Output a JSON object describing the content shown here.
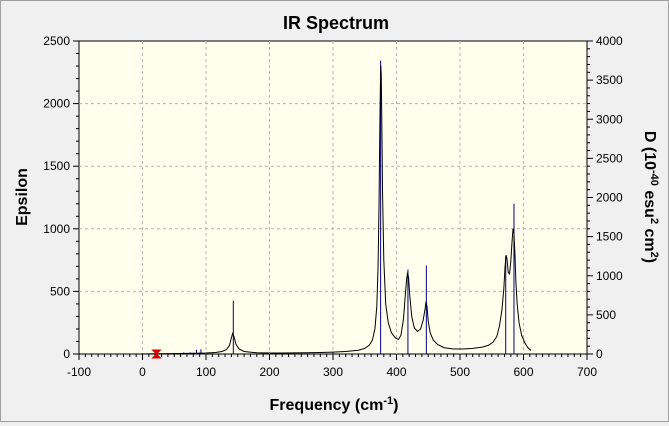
{
  "chart_data": {
    "type": "line",
    "title": "IR Spectrum",
    "xlabel_main": "Frequency (cm",
    "xlabel_sup": "-1",
    "xlabel_end": ")",
    "ylabel_left": "Epsilon",
    "ylabel_right_parts": [
      "D (10",
      "-40",
      " esu",
      "2",
      " cm",
      "2",
      ")"
    ],
    "xlim": [
      -100,
      700
    ],
    "ylim_left": [
      0,
      2500
    ],
    "ylim_right": [
      0,
      4000
    ],
    "x_ticks": [
      -100,
      0,
      100,
      200,
      300,
      400,
      500,
      600,
      700
    ],
    "y_left_ticks": [
      0,
      500,
      1000,
      1500,
      2000,
      2500
    ],
    "y_right_ticks": [
      0,
      500,
      1000,
      1500,
      2000,
      2500,
      3000,
      3500,
      4000
    ],
    "grid": true,
    "colors": {
      "plot_bg": "#ffffee",
      "spectrum_line": "#000000",
      "stick_lines": "#000080",
      "marker": "#dd0000",
      "grid": "#b4b4b4"
    },
    "series": [
      {
        "kind": "spectrum",
        "points": [
          [
            -5,
            0
          ],
          [
            20,
            2
          ],
          [
            40,
            3
          ],
          [
            60,
            4
          ],
          [
            80,
            6
          ],
          [
            100,
            8
          ],
          [
            115,
            12
          ],
          [
            125,
            20
          ],
          [
            132,
            35
          ],
          [
            137,
            70
          ],
          [
            140,
            130
          ],
          [
            142,
            165
          ],
          [
            144,
            140
          ],
          [
            147,
            80
          ],
          [
            152,
            40
          ],
          [
            160,
            20
          ],
          [
            180,
            10
          ],
          [
            200,
            8
          ],
          [
            220,
            8
          ],
          [
            240,
            9
          ],
          [
            260,
            10
          ],
          [
            280,
            12
          ],
          [
            300,
            15
          ],
          [
            320,
            20
          ],
          [
            340,
            30
          ],
          [
            350,
            45
          ],
          [
            357,
            70
          ],
          [
            362,
            110
          ],
          [
            366,
            200
          ],
          [
            369,
            380
          ],
          [
            371,
            700
          ],
          [
            372.5,
            1200
          ],
          [
            373.5,
            1700
          ],
          [
            374.5,
            2100
          ],
          [
            375.3,
            2300
          ],
          [
            376,
            2230
          ],
          [
            377,
            1800
          ],
          [
            378,
            1300
          ],
          [
            380,
            750
          ],
          [
            383,
            400
          ],
          [
            387,
            250
          ],
          [
            392,
            170
          ],
          [
            398,
            130
          ],
          [
            403,
            115
          ],
          [
            407,
            150
          ],
          [
            411,
            280
          ],
          [
            414,
            480
          ],
          [
            416,
            600
          ],
          [
            417.5,
            650
          ],
          [
            419,
            610
          ],
          [
            421,
            460
          ],
          [
            424,
            300
          ],
          [
            428,
            210
          ],
          [
            433,
            180
          ],
          [
            438,
            200
          ],
          [
            442,
            270
          ],
          [
            445,
            360
          ],
          [
            446.5,
            420
          ],
          [
            448,
            380
          ],
          [
            450,
            260
          ],
          [
            453,
            170
          ],
          [
            458,
            110
          ],
          [
            465,
            75
          ],
          [
            475,
            50
          ],
          [
            490,
            40
          ],
          [
            505,
            40
          ],
          [
            520,
            45
          ],
          [
            535,
            55
          ],
          [
            545,
            70
          ],
          [
            552,
            95
          ],
          [
            558,
            140
          ],
          [
            562,
            220
          ],
          [
            566,
            350
          ],
          [
            569,
            520
          ],
          [
            571,
            700
          ],
          [
            572.5,
            790
          ],
          [
            574,
            760
          ],
          [
            576,
            650
          ],
          [
            578,
            640
          ],
          [
            580,
            740
          ],
          [
            582,
            900
          ],
          [
            583.5,
            1000
          ],
          [
            585,
            960
          ],
          [
            586.5,
            800
          ],
          [
            588,
            580
          ],
          [
            590,
            400
          ],
          [
            593,
            250
          ],
          [
            597,
            150
          ],
          [
            602,
            90
          ],
          [
            607,
            50
          ],
          [
            612,
            28
          ]
        ]
      },
      {
        "kind": "sticks",
        "unit": "D (10^-40 esu^2 cm^2)",
        "points": [
          [
            22,
            25
          ],
          [
            65,
            20
          ],
          [
            75,
            20
          ],
          [
            85,
            55
          ],
          [
            92,
            60
          ],
          [
            143,
            680
          ],
          [
            238,
            20
          ],
          [
            300,
            20
          ],
          [
            375,
            3750
          ],
          [
            418,
            1080
          ],
          [
            447,
            1130
          ],
          [
            572,
            1250
          ],
          [
            585,
            1920
          ]
        ]
      }
    ],
    "marker_point": [
      22,
      0
    ]
  }
}
